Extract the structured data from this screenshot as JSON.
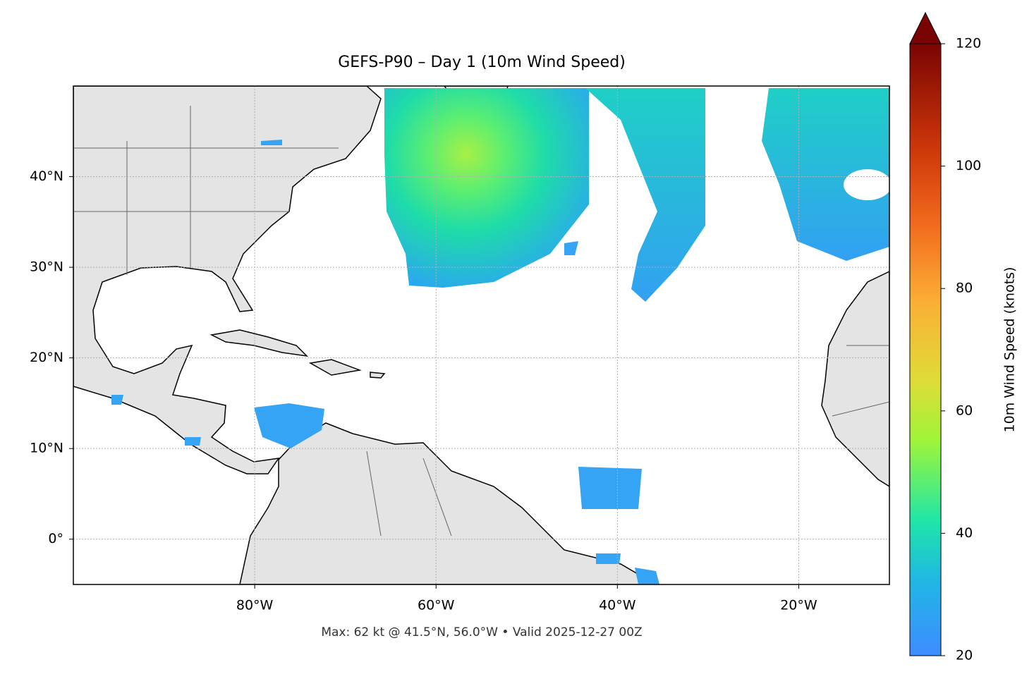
{
  "title": "GEFS-P90 – Day 1 (10m Wind Speed)",
  "footer": "Max: 62 kt @ 41.5°N, 56.0°W • Valid 2025-12-27 00Z",
  "map": {
    "xlim": [
      -100,
      -10
    ],
    "ylim": [
      -5,
      50
    ],
    "xticks": [
      {
        "value": -80,
        "label": "80°W"
      },
      {
        "value": -60,
        "label": "60°W"
      },
      {
        "value": -40,
        "label": "40°W"
      },
      {
        "value": -20,
        "label": "20°W"
      }
    ],
    "yticks": [
      {
        "value": 0,
        "label": "0°"
      },
      {
        "value": 10,
        "label": "10°N"
      },
      {
        "value": 20,
        "label": "20°N"
      },
      {
        "value": 30,
        "label": "30°N"
      },
      {
        "value": 40,
        "label": "40°N"
      }
    ],
    "grid": true
  },
  "colorbar": {
    "label": "10m Wind Speed (knots)",
    "lim": [
      20,
      120
    ],
    "ticks": [
      20,
      40,
      60,
      80,
      100,
      120
    ]
  }
}
